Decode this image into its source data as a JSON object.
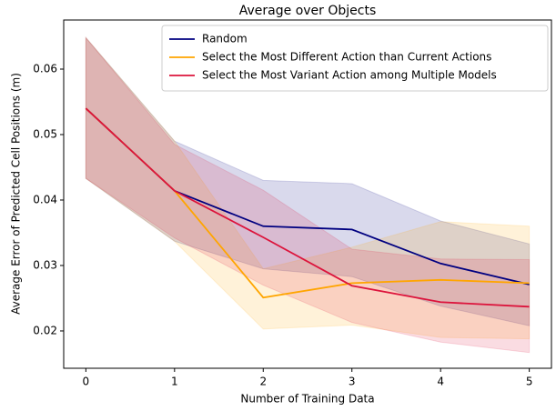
{
  "chart_data": {
    "type": "line",
    "title": "Average over Objects",
    "x_label": "Number of Training Data",
    "y_label": "Average Error of Predicted Cell Positions (m)",
    "x": [
      0,
      1,
      2,
      3,
      4,
      5
    ],
    "series": [
      {
        "name": "Random",
        "color": "#000080",
        "values": [
          0.054,
          0.0414,
          0.036,
          0.0355,
          0.0303,
          0.0271
        ],
        "upper": [
          0.0648,
          0.049,
          0.043,
          0.0425,
          0.0368,
          0.0333
        ],
        "lower": [
          0.0433,
          0.0337,
          0.0295,
          0.0283,
          0.0238,
          0.0208
        ]
      },
      {
        "name": "Select the Most Different Action than Current Actions",
        "color": "#ffa500",
        "values": [
          0.054,
          0.0414,
          0.0251,
          0.0273,
          0.0278,
          0.0273
        ],
        "upper": [
          0.0648,
          0.049,
          0.0295,
          0.0328,
          0.0367,
          0.036
        ],
        "lower": [
          0.0433,
          0.0337,
          0.0203,
          0.0209,
          0.019,
          0.0188
        ]
      },
      {
        "name": "Select the Most Variant Action among Multiple Models",
        "color": "#dc143c",
        "values": [
          0.054,
          0.0414,
          0.0343,
          0.0269,
          0.0244,
          0.0237
        ],
        "upper": [
          0.0648,
          0.0485,
          0.0415,
          0.0325,
          0.031,
          0.0309
        ],
        "lower": [
          0.0433,
          0.0342,
          0.027,
          0.0213,
          0.0183,
          0.0167
        ]
      }
    ],
    "xlim": [
      -0.25,
      5.25
    ],
    "ylim": [
      0.0143,
      0.0675
    ],
    "xticks": [
      0,
      1,
      2,
      3,
      4,
      5
    ],
    "yticks": [
      0.02,
      0.03,
      0.04,
      0.05,
      0.06
    ],
    "legend": "upper right"
  }
}
